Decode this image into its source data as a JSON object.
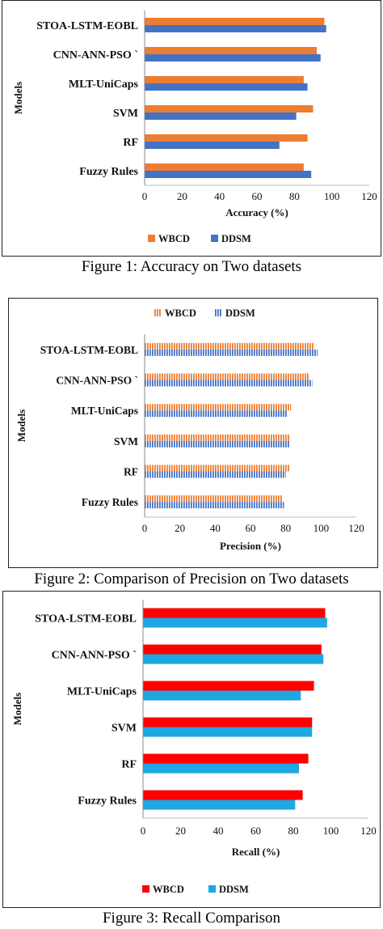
{
  "figures": [
    {
      "caption": "Figure 1: Accuracy on Two datasets",
      "chart_data": {
        "type": "bar",
        "orientation": "horizontal",
        "categories": [
          "STOA-LSTM-EOBL",
          "CNN-ANN-PSO `",
          "MLT-UniCaps",
          "SVM",
          "RF",
          "Fuzzy Rules"
        ],
        "series": [
          {
            "name": "WBCD",
            "values": [
              96,
              92,
              85,
              90,
              87,
              85
            ],
            "color": "#ED7D31",
            "pattern": "solid"
          },
          {
            "name": "DDSM",
            "values": [
              97,
              94,
              87,
              81,
              72,
              89
            ],
            "color": "#4472C4",
            "pattern": "solid"
          }
        ],
        "xlabel": "Accuracy (%)",
        "ylabel": "Models",
        "xlim": [
          0,
          120
        ],
        "xticks": [
          0,
          20,
          40,
          60,
          80,
          100,
          120
        ],
        "grid": false,
        "legend_position": "bottom"
      }
    },
    {
      "caption": "Figure 2: Comparison of Precision on Two datasets",
      "chart_data": {
        "type": "bar",
        "orientation": "horizontal",
        "categories": [
          "STOA-LSTM-EOBL",
          "CNN-ANN-PSO `",
          "MLT-UniCaps",
          "SVM",
          "RF",
          "Fuzzy Rules"
        ],
        "series": [
          {
            "name": "WBCD",
            "values": [
              96,
              93,
              83,
              82,
              82,
              78
            ],
            "color": "#ED7D31",
            "pattern": "striped"
          },
          {
            "name": "DDSM",
            "values": [
              98,
              95,
              81,
              82,
              80,
              79
            ],
            "color": "#4472C4",
            "pattern": "striped"
          }
        ],
        "xlabel": "Precision (%)",
        "ylabel": "Models",
        "xlim": [
          0,
          120
        ],
        "xticks": [
          0,
          20,
          40,
          60,
          80,
          100,
          120
        ],
        "grid": false,
        "legend_position": "top"
      }
    },
    {
      "caption": "Figure 3: Recall Comparison",
      "chart_data": {
        "type": "bar",
        "orientation": "horizontal",
        "categories": [
          "STOA-LSTM-EOBL",
          "CNN-ANN-PSO `",
          "MLT-UniCaps",
          "SVM",
          "RF",
          "Fuzzy Rules"
        ],
        "series": [
          {
            "name": "WBCD",
            "values": [
              97,
              95,
              91,
              90,
              88,
              85
            ],
            "color": "#FF0000",
            "pattern": "solid"
          },
          {
            "name": "DDSM",
            "values": [
              98,
              96,
              84,
              90,
              83,
              81
            ],
            "color": "#1EA7E1",
            "pattern": "solid"
          }
        ],
        "xlabel": "Recall (%)",
        "ylabel": "Models",
        "xlim": [
          0,
          120
        ],
        "xticks": [
          0,
          20,
          40,
          60,
          80,
          100,
          120
        ],
        "grid": false,
        "legend_position": "bottom"
      }
    }
  ]
}
